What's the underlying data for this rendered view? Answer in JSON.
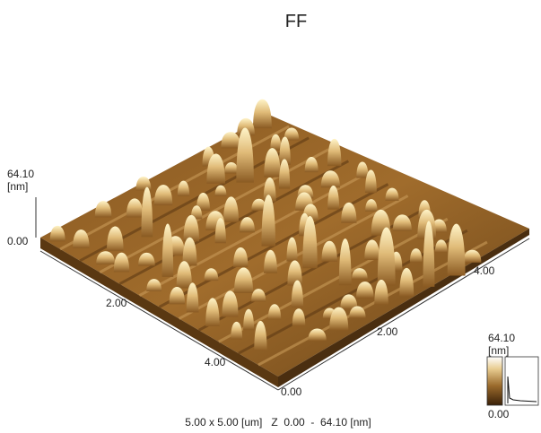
{
  "title": "FF",
  "z_axis": {
    "max": "64.10",
    "unit": "[nm]",
    "min": "0.00"
  },
  "front_left_axis": {
    "ticks": [
      "2.00",
      "4.00"
    ]
  },
  "front_right_axis": {
    "ticks": [
      "0.00",
      "2.00",
      "4.00"
    ]
  },
  "color_bar": {
    "max": "64.10",
    "unit": "[nm]",
    "min": "0.00"
  },
  "caption": "5.00 x 5.00 [um]   Z  0.00  -  64.10 [nm]"
}
